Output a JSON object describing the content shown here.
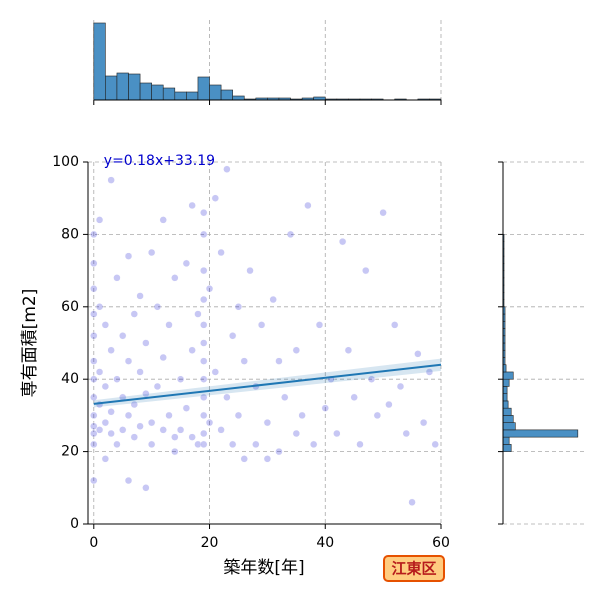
{
  "chart_data": {
    "type": "scatter",
    "xlabel": "築年数[年]",
    "ylabel": "専有面積[m2]",
    "badge": "江東区",
    "annotation": "y=0.18x+33.19",
    "color": "#0000cd",
    "line_color": "#1f77b4",
    "hist_color": "#4a90c4",
    "xlim": [
      -1,
      60
    ],
    "ylim": [
      0,
      100
    ],
    "xticks": [
      0,
      20,
      40,
      60
    ],
    "yticks": [
      0,
      20,
      40,
      60,
      80,
      100
    ],
    "grid": true,
    "x": [
      0,
      0,
      0,
      0,
      0,
      0,
      0,
      0,
      0,
      0,
      0,
      0,
      0,
      1,
      1,
      1,
      1,
      1,
      2,
      2,
      2,
      2,
      3,
      3,
      3,
      3,
      4,
      4,
      4,
      5,
      5,
      5,
      6,
      6,
      6,
      6,
      7,
      7,
      7,
      8,
      8,
      8,
      9,
      9,
      9,
      10,
      10,
      10,
      11,
      11,
      12,
      12,
      12,
      13,
      13,
      14,
      14,
      14,
      15,
      15,
      16,
      16,
      17,
      17,
      17,
      18,
      18,
      19,
      19,
      19,
      19,
      19,
      19,
      19,
      19,
      19,
      19,
      19,
      19,
      20,
      20,
      21,
      21,
      22,
      22,
      23,
      23,
      24,
      24,
      25,
      25,
      26,
      26,
      27,
      28,
      28,
      29,
      30,
      30,
      31,
      32,
      32,
      33,
      34,
      35,
      35,
      36,
      37,
      38,
      39,
      40,
      41,
      42,
      43,
      44,
      45,
      46,
      47,
      48,
      49,
      50,
      51,
      52,
      53,
      54,
      55,
      56,
      57,
      58,
      59
    ],
    "values": [
      80,
      72,
      65,
      58,
      52,
      45,
      40,
      35,
      30,
      27,
      25,
      22,
      12,
      84,
      60,
      42,
      33,
      26,
      55,
      38,
      28,
      18,
      95,
      48,
      31,
      25,
      68,
      40,
      22,
      52,
      35,
      26,
      74,
      45,
      30,
      12,
      58,
      33,
      24,
      63,
      42,
      27,
      50,
      36,
      10,
      75,
      28,
      22,
      60,
      38,
      84,
      46,
      26,
      55,
      30,
      68,
      24,
      20,
      40,
      26,
      72,
      32,
      88,
      48,
      24,
      58,
      22,
      86,
      80,
      70,
      62,
      55,
      50,
      45,
      40,
      35,
      30,
      25,
      22,
      65,
      28,
      90,
      42,
      75,
      26,
      98,
      35,
      52,
      22,
      60,
      30,
      45,
      18,
      70,
      38,
      22,
      55,
      28,
      18,
      62,
      45,
      20,
      35,
      80,
      48,
      25,
      30,
      88,
      22,
      55,
      32,
      40,
      25,
      78,
      48,
      35,
      22,
      70,
      40,
      30,
      86,
      33,
      55,
      38,
      25,
      6,
      47,
      28,
      42,
      22
    ],
    "regression": {
      "x": [
        0,
        60
      ],
      "values": [
        33.19,
        43.99
      ],
      "lower": [
        32.2,
        42.3
      ],
      "upper": [
        34.2,
        45.7
      ]
    },
    "top_hist": {
      "bins": [
        0,
        2,
        4,
        6,
        8,
        10,
        12,
        14,
        16,
        18,
        20,
        22,
        24,
        26,
        28,
        30,
        32,
        34,
        36,
        38,
        40,
        42,
        44,
        46,
        48,
        50,
        52,
        54,
        56,
        58,
        60
      ],
      "counts": [
        77,
        24,
        27,
        26,
        17,
        15,
        12,
        8,
        8,
        23,
        15,
        10,
        4,
        1,
        2,
        2,
        2,
        1,
        2,
        3,
        1,
        1,
        1,
        1,
        1,
        0,
        1,
        0,
        1,
        1
      ],
      "ylim": [
        0,
        80
      ]
    },
    "right_hist": {
      "bins": [
        0,
        2,
        4,
        6,
        8,
        10,
        12,
        14,
        16,
        18,
        20,
        22,
        24,
        26,
        28,
        30,
        32,
        34,
        36,
        38,
        40,
        42,
        44,
        46,
        48,
        50,
        52,
        54,
        56,
        58,
        60,
        62,
        64,
        66,
        68,
        70,
        72,
        74,
        76,
        78,
        80,
        82,
        84,
        86,
        88,
        90,
        92,
        94,
        96,
        98,
        100
      ],
      "counts": [
        0,
        0,
        0,
        0,
        0,
        0,
        0,
        0,
        0,
        0,
        8,
        6,
        73,
        12,
        10,
        8,
        5,
        4,
        4,
        6,
        10,
        3,
        2,
        2,
        2,
        2,
        2,
        2,
        2,
        2,
        1,
        1,
        1,
        1,
        1,
        1,
        1,
        1,
        1,
        1,
        0,
        0,
        0,
        0,
        0,
        0,
        0,
        0,
        0,
        0
      ],
      "xlim": [
        0,
        80
      ]
    }
  }
}
